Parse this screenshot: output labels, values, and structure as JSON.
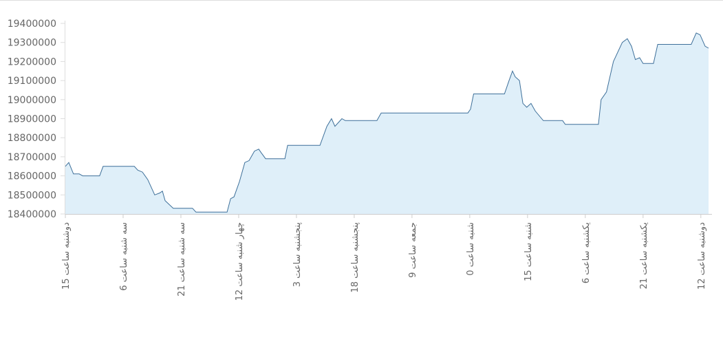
{
  "chart_data": {
    "type": "area",
    "color": "#3d6f99",
    "fill": "#dfeff9",
    "x": [
      0,
      0.9,
      2.1,
      3.6,
      4.5,
      8.9,
      9.8,
      17.9,
      18.8,
      20,
      21.4,
      23.2,
      24.5,
      25.2,
      25.9,
      28,
      33,
      33.9,
      42,
      42.9,
      43.8,
      45.2,
      46.6,
      47.7,
      49.1,
      50.2,
      50.9,
      52,
      57,
      57.7,
      66.1,
      67.9,
      69.1,
      70,
      70.9,
      71.8,
      72.7,
      80.9,
      82,
      104.5,
      105.2,
      106,
      114,
      115.2,
      116.1,
      116.8,
      117.9,
      118.8,
      119.8,
      120.9,
      122,
      124.1,
      129.1,
      129.8,
      138.4,
      139.1,
      140.5,
      142.3,
      144.6,
      145.9,
      147,
      148,
      149.1,
      150,
      152.7,
      153.8,
      162.5,
      163.8,
      164.8,
      166.1,
      167
    ],
    "values": [
      18650000,
      18670000,
      18610000,
      18610000,
      18600000,
      18600000,
      18650000,
      18650000,
      18630000,
      18620000,
      18580000,
      18500000,
      18510000,
      18520000,
      18470000,
      18430000,
      18430000,
      18410000,
      18410000,
      18480000,
      18490000,
      18570000,
      18670000,
      18680000,
      18730000,
      18740000,
      18720000,
      18690000,
      18690000,
      18760000,
      18760000,
      18860000,
      18900000,
      18860000,
      18880000,
      18900000,
      18890000,
      18890000,
      18930000,
      18930000,
      18950000,
      19030000,
      19030000,
      19100000,
      19150000,
      19120000,
      19100000,
      18980000,
      18960000,
      18980000,
      18940000,
      18890000,
      18890000,
      18870000,
      18870000,
      19000000,
      19040000,
      19200000,
      19300000,
      19320000,
      19280000,
      19210000,
      19220000,
      19190000,
      19190000,
      19290000,
      19290000,
      19350000,
      19340000,
      19280000,
      19270000
    ],
    "xlim": [
      0,
      167
    ],
    "xticks": [
      {
        "value": 0,
        "label": "دوشنبه ساعت 15"
      },
      {
        "value": 15,
        "label": "سه شنبه ساعت 6"
      },
      {
        "value": 30,
        "label": "سه شنبه ساعت 21"
      },
      {
        "value": 45,
        "label": "چهار شنبه ساعت 12"
      },
      {
        "value": 60,
        "label": "پنجشنبه ساعت 3"
      },
      {
        "value": 75,
        "label": "پنجشنبه ساعت 18"
      },
      {
        "value": 90,
        "label": "جمعه ساعت 9"
      },
      {
        "value": 105,
        "label": "شنبه ساعت 0"
      },
      {
        "value": 120,
        "label": "شنبه ساعت 15"
      },
      {
        "value": 135,
        "label": "یکشنبه ساعت 6"
      },
      {
        "value": 150,
        "label": "یکشنبه ساعت 21"
      },
      {
        "value": 165,
        "label": "دوشنبه ساعت 12"
      }
    ],
    "ylim": [
      18400000,
      19400000
    ],
    "yticks": [
      18400000,
      18500000,
      18600000,
      18700000,
      18800000,
      18900000,
      19000000,
      19100000,
      19200000,
      19300000,
      19400000
    ]
  }
}
